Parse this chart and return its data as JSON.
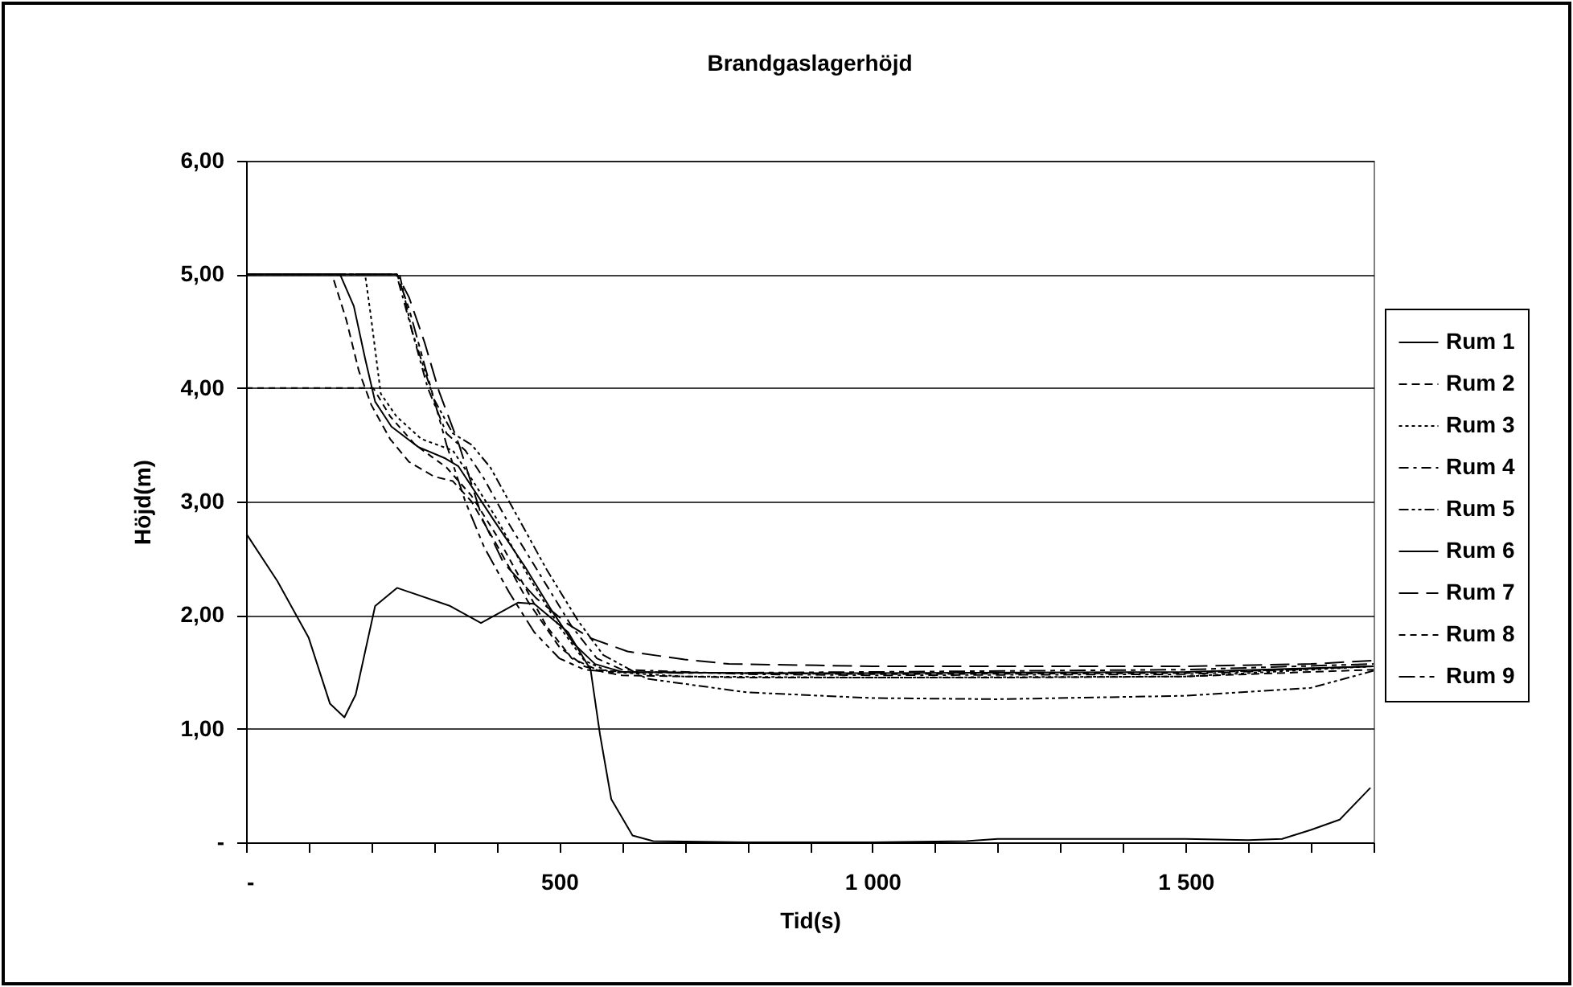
{
  "chart_data": {
    "type": "line",
    "title": "Brandgaslagerhöjd",
    "xlabel": "Tid(s)",
    "ylabel": "Höjd(m)",
    "xlim": [
      0,
      1800
    ],
    "ylim": [
      0,
      6
    ],
    "xticks": [
      {
        "value": 0,
        "label": "-"
      },
      {
        "value": 100,
        "label": null
      },
      {
        "value": 200,
        "label": null
      },
      {
        "value": 300,
        "label": null
      },
      {
        "value": 400,
        "label": null
      },
      {
        "value": 500,
        "label": "500"
      },
      {
        "value": 600,
        "label": null
      },
      {
        "value": 700,
        "label": null
      },
      {
        "value": 800,
        "label": null
      },
      {
        "value": 900,
        "label": null
      },
      {
        "value": 1000,
        "label": "1 000"
      },
      {
        "value": 1100,
        "label": null
      },
      {
        "value": 1200,
        "label": null
      },
      {
        "value": 1300,
        "label": null
      },
      {
        "value": 1400,
        "label": null
      },
      {
        "value": 1500,
        "label": "1 500"
      },
      {
        "value": 1600,
        "label": null
      },
      {
        "value": 1700,
        "label": null
      },
      {
        "value": 1800,
        "label": null
      }
    ],
    "yticks": [
      {
        "value": 0,
        "label": "-"
      },
      {
        "value": 1,
        "label": "1,00"
      },
      {
        "value": 2,
        "label": "2,00"
      },
      {
        "value": 3,
        "label": "3,00"
      },
      {
        "value": 4,
        "label": "4,00"
      },
      {
        "value": 5,
        "label": "5,00"
      },
      {
        "value": 6,
        "label": "6,00"
      }
    ],
    "grid": "y",
    "legend": "right",
    "marker": "none",
    "series": [
      {
        "name": "Rum 1",
        "color": "#000000",
        "line_style": "solid",
        "x": [
          0,
          50,
          100,
          134,
          157,
          175,
          206,
          241,
          326,
          375,
          434,
          460,
          514,
          550,
          565,
          583,
          617,
          650,
          800,
          1000,
          1150,
          1200,
          1500,
          1600,
          1654,
          1700,
          1746,
          1795
        ],
        "values": [
          2.72,
          2.3,
          1.8,
          1.22,
          1.1,
          1.3,
          2.08,
          2.24,
          2.08,
          1.93,
          2.11,
          2.1,
          1.85,
          1.52,
          0.95,
          0.38,
          0.06,
          0.01,
          0.0,
          0.0,
          0.01,
          0.03,
          0.03,
          0.02,
          0.03,
          0.11,
          0.2,
          0.48
        ]
      },
      {
        "name": "Rum 2",
        "color": "#000000",
        "line_style": "dashed",
        "x": [
          140,
          160,
          180,
          200,
          230,
          260,
          300,
          330,
          360,
          400,
          450,
          500,
          540,
          570,
          600,
          800,
          1000,
          1200,
          1500,
          1800
        ],
        "values": [
          4.95,
          4.6,
          4.15,
          3.85,
          3.55,
          3.35,
          3.22,
          3.18,
          3.0,
          2.62,
          2.12,
          1.72,
          1.55,
          1.5,
          1.47,
          1.45,
          1.45,
          1.45,
          1.46,
          1.52
        ]
      },
      {
        "name": "Rum 3",
        "color": "#000000",
        "line_style": "dotted",
        "x": [
          0,
          190,
          200,
          215,
          240,
          280,
          330,
          360,
          400,
          450,
          500,
          540,
          580,
          700,
          1000,
          1500,
          1800
        ],
        "values": [
          5,
          5,
          4.6,
          3.95,
          3.75,
          3.55,
          3.45,
          3.2,
          2.85,
          2.35,
          1.9,
          1.6,
          1.5,
          1.46,
          1.45,
          1.46,
          1.55
        ]
      },
      {
        "name": "Rum 4",
        "color": "#000000",
        "line_style": "dashdot",
        "x": [
          0,
          240,
          260,
          290,
          320,
          350,
          380,
          420,
          470,
          520,
          560,
          600,
          800,
          1000,
          1500,
          1800
        ],
        "values": [
          5,
          5,
          4.6,
          4.0,
          3.6,
          3.45,
          3.2,
          2.8,
          2.35,
          1.9,
          1.62,
          1.52,
          1.48,
          1.47,
          1.48,
          1.55
        ]
      },
      {
        "name": "Rum 5",
        "color": "#000000",
        "line_style": "dashdotdot",
        "x": [
          0,
          245,
          265,
          300,
          330,
          360,
          390,
          430,
          480,
          530,
          570,
          640,
          800,
          1000,
          1200,
          1500,
          1700,
          1800
        ],
        "values": [
          5,
          5,
          4.5,
          3.9,
          3.6,
          3.5,
          3.3,
          2.9,
          2.4,
          1.95,
          1.65,
          1.44,
          1.32,
          1.27,
          1.26,
          1.29,
          1.36,
          1.51
        ]
      },
      {
        "name": "Rum 6",
        "color": "#000000",
        "line_style": "solid",
        "x": [
          0,
          150,
          172,
          190,
          206,
          232,
          275,
          318,
          339,
          395,
          446,
          488,
          523,
          557,
          600,
          800,
          1000,
          1500,
          1800
        ],
        "values": [
          5,
          5,
          4.72,
          4.26,
          3.88,
          3.66,
          3.48,
          3.38,
          3.31,
          2.84,
          2.42,
          2.04,
          1.75,
          1.57,
          1.5,
          1.49,
          1.49,
          1.5,
          1.55
        ]
      },
      {
        "name": "Rum 7",
        "color": "#000000",
        "line_style": "longdash",
        "x": [
          0,
          241,
          260,
          285,
          308,
          340,
          378,
          411,
          463,
          514,
          549,
          609,
          700,
          771,
          1000,
          1500,
          1700,
          1800
        ],
        "values": [
          5,
          5,
          4.8,
          4.4,
          3.97,
          3.5,
          2.84,
          2.46,
          2.15,
          1.92,
          1.8,
          1.68,
          1.61,
          1.57,
          1.55,
          1.55,
          1.57,
          1.6
        ]
      },
      {
        "name": "Rum 8",
        "color": "#000000",
        "line_style": "shortdash",
        "x": [
          0,
          203,
          230,
          270,
          320,
          360,
          400,
          440,
          480,
          520,
          560,
          600,
          1000,
          1500,
          1800
        ],
        "values": [
          4,
          4,
          3.75,
          3.5,
          3.3,
          3.05,
          2.7,
          2.3,
          1.9,
          1.62,
          1.52,
          1.5,
          1.48,
          1.49,
          1.55
        ]
      },
      {
        "name": "Rum 9",
        "color": "#000000",
        "line_style": "longdashdotdot",
        "x": [
          0,
          241,
          260,
          290,
          320,
          350,
          380,
          420,
          460,
          500,
          540,
          580,
          700,
          1000,
          1500,
          1800
        ],
        "values": [
          5,
          5,
          4.7,
          4.1,
          3.5,
          3.0,
          2.6,
          2.2,
          1.85,
          1.62,
          1.52,
          1.5,
          1.49,
          1.5,
          1.52,
          1.57
        ]
      }
    ]
  }
}
